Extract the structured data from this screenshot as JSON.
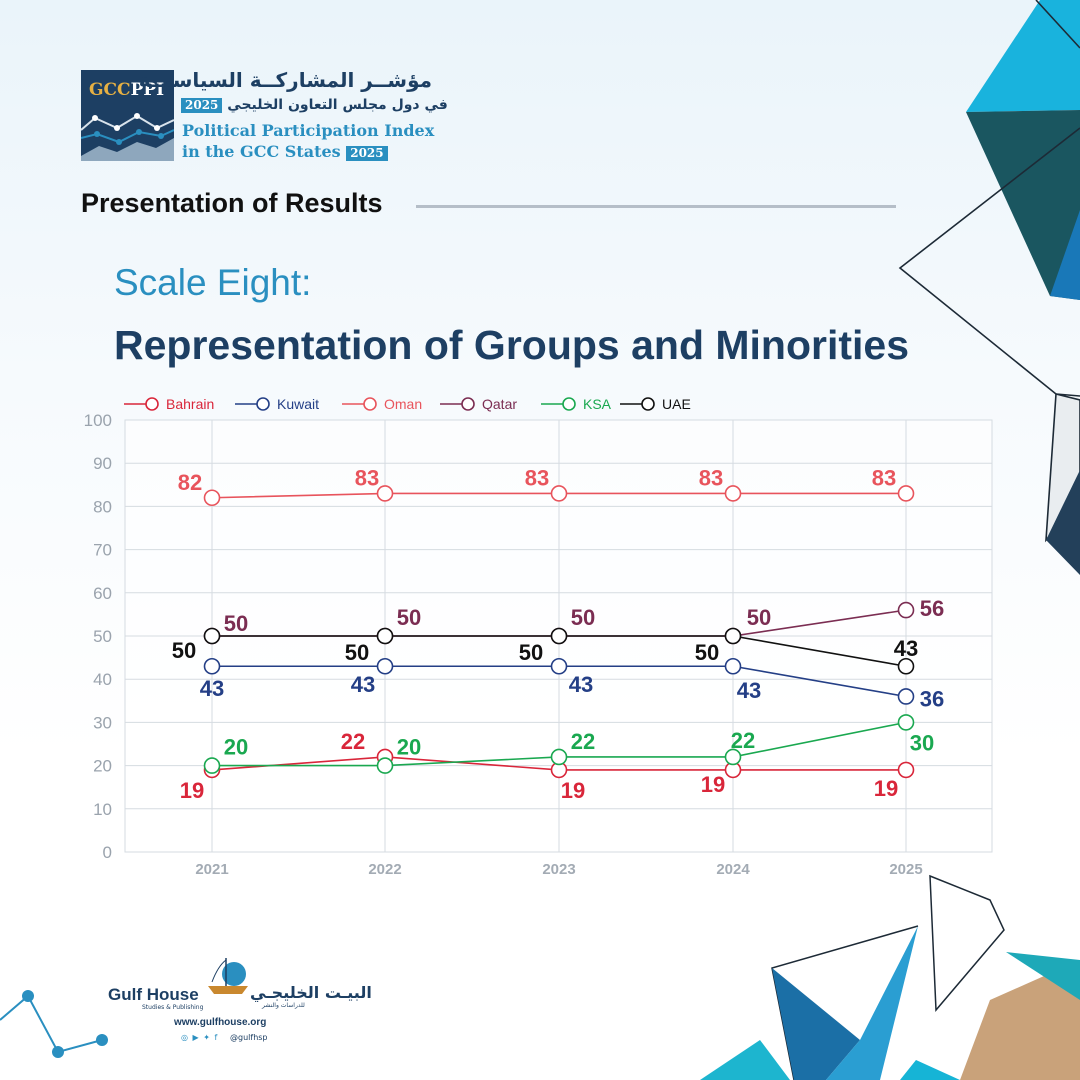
{
  "header": {
    "logo_text_a": "GCC",
    "logo_text_b": "PPI",
    "index_title_ar": "مؤشــر المشاركــة السياسيــة",
    "index_subtitle_ar": "في دول مجلس التعاون الخليجي",
    "index_title_en_line1": "Political Participation Index",
    "index_title_en_line2": "in the GCC States",
    "year": "2025"
  },
  "section_title": "Presentation of Results",
  "scale_subtitle": "Scale Eight:",
  "scale_title": "Representation of Groups and Minorities",
  "colors": {
    "navy": "#1d3f63",
    "accent_blue": "#2a8fc0",
    "teal": "#18a3c9"
  },
  "chart_data": {
    "type": "line",
    "x": [
      "2021",
      "2022",
      "2023",
      "2024",
      "2025"
    ],
    "ylim": [
      0,
      100
    ],
    "yticks": [
      0,
      10,
      20,
      30,
      40,
      50,
      60,
      70,
      80,
      90,
      100
    ],
    "grid": true,
    "legend_position": "top-left",
    "series": [
      {
        "name": "Bahrain",
        "color": "#d9263a",
        "values": [
          19,
          22,
          19,
          19,
          19
        ]
      },
      {
        "name": "Kuwait",
        "color": "#243f86",
        "values": [
          43,
          43,
          43,
          43,
          36
        ]
      },
      {
        "name": "Oman",
        "color": "#e8545c",
        "values": [
          82,
          83,
          83,
          83,
          83
        ]
      },
      {
        "name": "Qatar",
        "color": "#7b2d52",
        "values": [
          50,
          50,
          50,
          50,
          56
        ]
      },
      {
        "name": "KSA",
        "color": "#1aa850",
        "values": [
          20,
          20,
          22,
          22,
          30
        ]
      },
      {
        "name": "UAE",
        "color": "#111111",
        "values": [
          50,
          50,
          50,
          50,
          43
        ]
      }
    ]
  },
  "footer": {
    "publisher_en": "Gulf House",
    "publisher_en_sub": "Studies & Publishing",
    "publisher_ar": "البيـت الخليجـي",
    "publisher_ar_sub": "للدراسات والنشر",
    "website": "www.gulfhouse.org",
    "social_icons": "◎ ▶ ✦ f",
    "handle": "@gulfhsp"
  }
}
